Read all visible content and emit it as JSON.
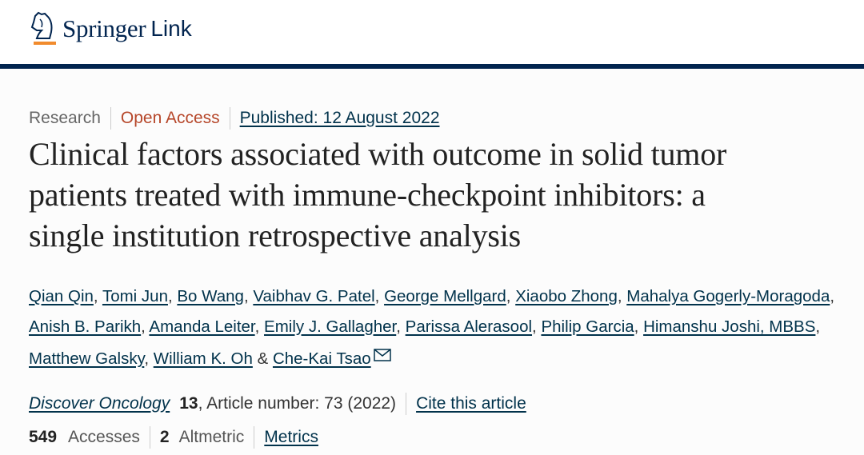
{
  "header": {
    "logo_text": "Springer",
    "logo_suffix": "Link",
    "colors": {
      "navy": "#01244f",
      "orange": "#f18b2d"
    }
  },
  "meta": {
    "type": "Research",
    "access": "Open Access",
    "published": "Published: 12 August 2022"
  },
  "title": {
    "line1": "Clinical factors associated with outcome in solid tumor",
    "line2": "patients treated with immune-checkpoint inhibitors: a",
    "line3": "single institution retrospective analysis"
  },
  "authors": [
    "Qian Qin",
    "Tomi Jun",
    "Bo Wang",
    "Vaibhav G. Patel",
    "George Mellgard",
    "Xiaobo Zhong",
    "Mahalya Gogerly-Moragoda",
    "Anish B. Parikh",
    "Amanda Leiter",
    "Emily J. Gallagher",
    "Parissa Alerasool",
    "Philip Garcia",
    "Himanshu Joshi, MBBS",
    "Matthew Galsky",
    "William K. Oh",
    "Che-Kai Tsao"
  ],
  "journal": {
    "name": "Discover Oncology",
    "volume": "13",
    "article": ", Article number: 73 (2022)",
    "cite": "Cite this article"
  },
  "stats": {
    "accesses_count": "549",
    "accesses_label": "Accesses",
    "altmetric_count": "2",
    "altmetric_label": "Altmetric",
    "metrics": "Metrics"
  }
}
